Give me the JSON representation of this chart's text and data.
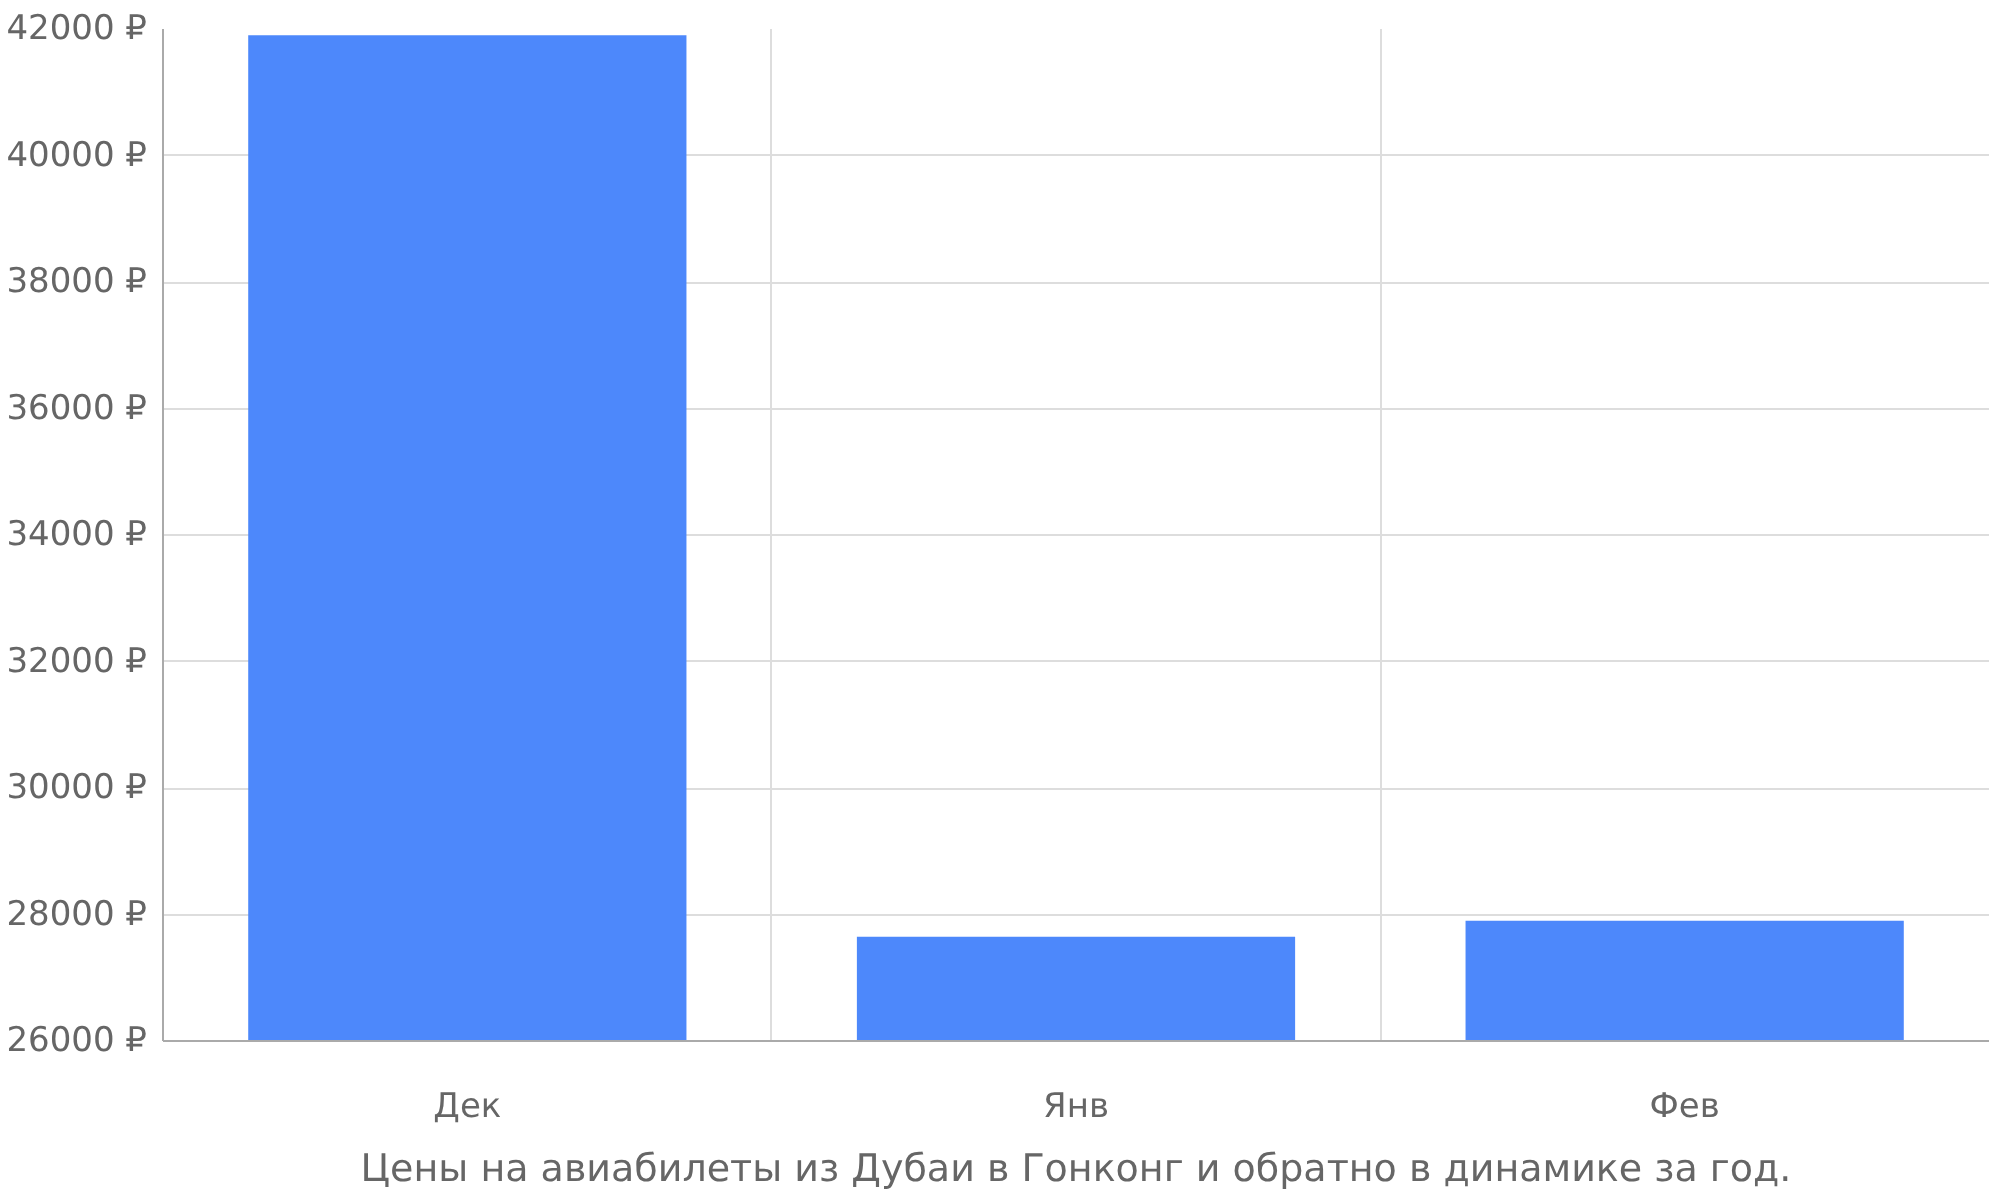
{
  "chart_data": {
    "type": "bar",
    "categories": [
      "Дек",
      "Янв",
      "Фев"
    ],
    "values": [
      41900,
      27650,
      27900
    ],
    "color": "#4d88fb",
    "ylim": [
      26000,
      42000
    ],
    "yticks": [
      {
        "value": 26000,
        "label": "26000 ₽"
      },
      {
        "value": 28000,
        "label": "28000 ₽"
      },
      {
        "value": 30000,
        "label": "30000 ₽"
      },
      {
        "value": 32000,
        "label": "32000 ₽"
      },
      {
        "value": 34000,
        "label": "34000 ₽"
      },
      {
        "value": 36000,
        "label": "36000 ₽"
      },
      {
        "value": 38000,
        "label": "38000 ₽"
      },
      {
        "value": 40000,
        "label": "40000 ₽"
      },
      {
        "value": 42000,
        "label": "42000 ₽"
      }
    ],
    "grid": true,
    "annotations": [
      "Цены на авиабилеты из Дубаи в Гонконг и обратно в динамике за год."
    ]
  }
}
